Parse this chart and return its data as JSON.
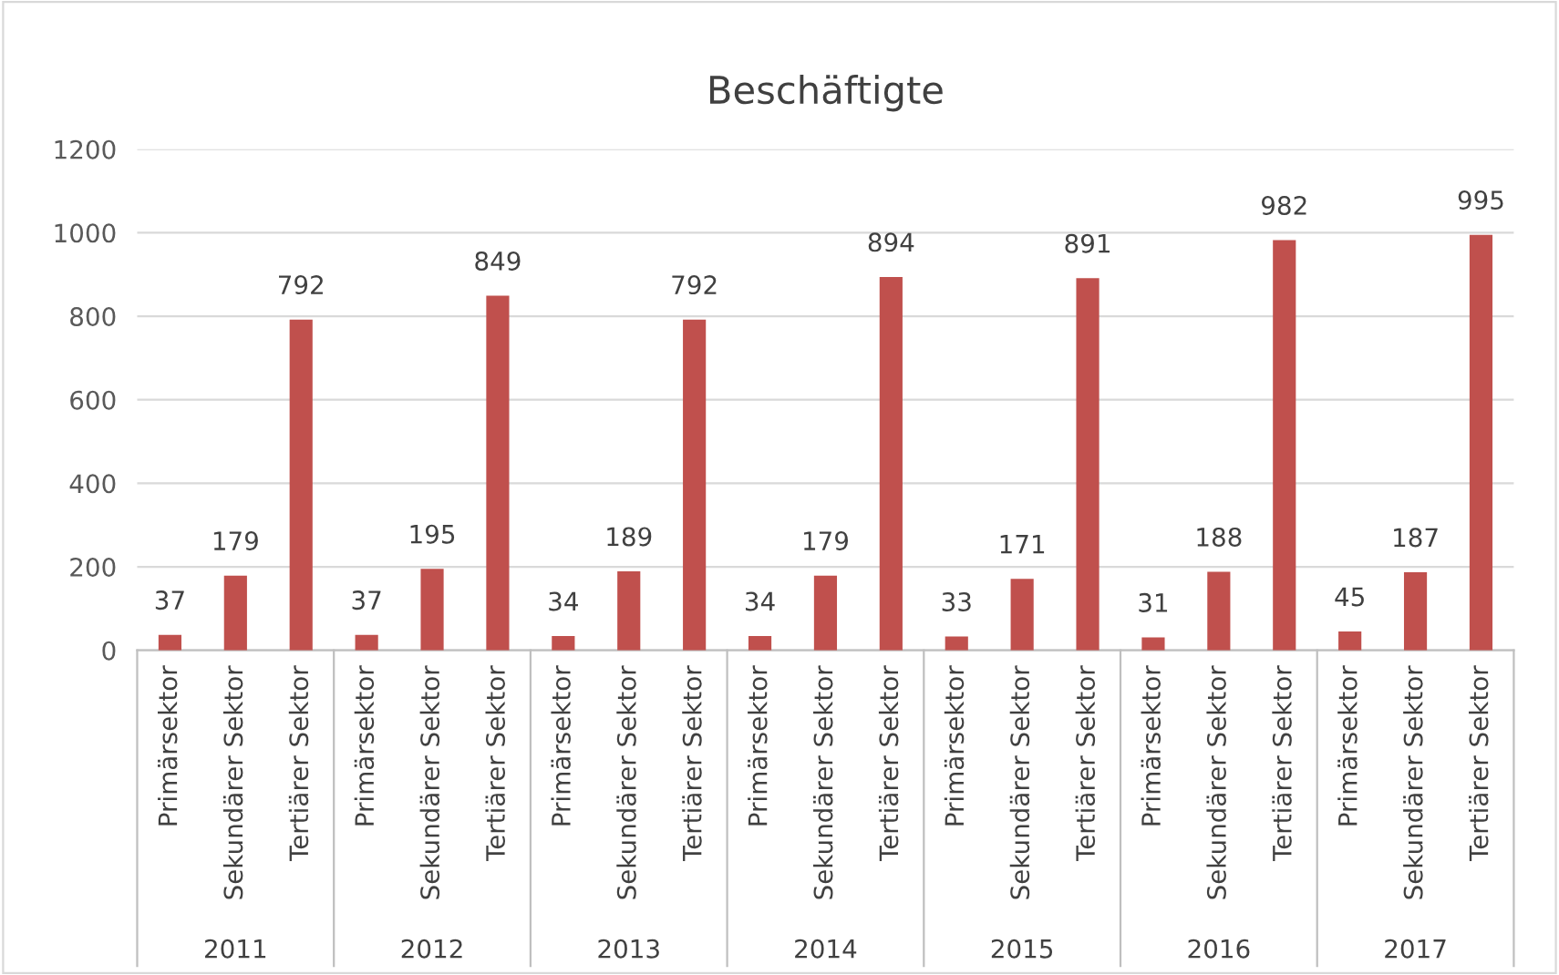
{
  "chart_data": {
    "type": "bar",
    "title": "Beschäftigte",
    "categories": [
      "Primärsektor",
      "Sekundärer Sektor",
      "Tertiärer Sektor",
      "Primärsektor",
      "Sekundärer Sektor",
      "Tertiärer Sektor",
      "Primärsektor",
      "Sekundärer Sektor",
      "Tertiärer Sektor",
      "Primärsektor",
      "Sekundärer Sektor",
      "Tertiärer Sektor",
      "Primärsektor",
      "Sekundärer Sektor",
      "Tertiärer Sektor",
      "Primärsektor",
      "Sekundärer Sektor",
      "Tertiärer Sektor",
      "Primärsektor",
      "Sekundärer Sektor",
      "Tertiärer Sektor"
    ],
    "values": [
      37,
      179,
      792,
      37,
      195,
      849,
      34,
      189,
      792,
      34,
      179,
      894,
      33,
      171,
      891,
      31,
      188,
      982,
      45,
      187,
      995
    ],
    "color": "#c0504d",
    "annotations": [
      "2011",
      "2012",
      "2013",
      "2014",
      "2015",
      "2016",
      "2017"
    ],
    "ylim": [
      0,
      1200
    ],
    "yticks": [
      0,
      200,
      400,
      600,
      800,
      1000,
      1200
    ],
    "grid": "y",
    "data_labels": true
  }
}
